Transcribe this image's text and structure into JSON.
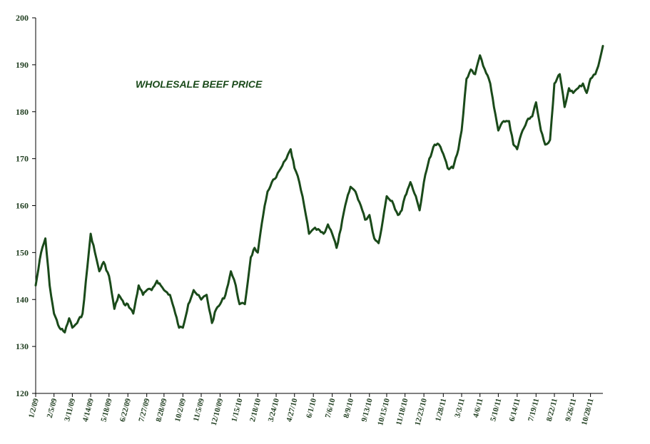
{
  "chart_data": {
    "type": "line",
    "title": "WHOLESALE BEEF PRICE",
    "xlabel": "",
    "ylabel": "",
    "ylim": [
      120,
      200
    ],
    "yticks": [
      120,
      130,
      140,
      150,
      160,
      170,
      180,
      190,
      200
    ],
    "xticks": [
      "1/2/09",
      "2/5/09",
      "3/11/09",
      "4/14/09",
      "5/18/09",
      "6/22/09",
      "7/27/09",
      "8/28/09",
      "10/2/09",
      "11/5/09",
      "12/10/09",
      "1/15/10",
      "2/18/10",
      "3/24/10",
      "4/27/10",
      "6/1/10",
      "7/6/10",
      "8/9/10",
      "9/13/10",
      "10/15/10",
      "11/18/10",
      "12/23/10",
      "1/28/11",
      "3/3/11",
      "4/6/11",
      "5/10/11",
      "6/14/11",
      "7/19/11",
      "8/22/11",
      "9/26/11",
      "10/28/11"
    ],
    "grid": false,
    "legend": "none",
    "series": [
      {
        "color": "#1a4a1a",
        "points": [
          [
            "1/2/09",
            143
          ],
          [
            "1/12/09",
            150
          ],
          [
            "1/20/09",
            153
          ],
          [
            "1/28/09",
            143
          ],
          [
            "2/5/09",
            137
          ],
          [
            "2/15/09",
            134
          ],
          [
            "2/25/09",
            133
          ],
          [
            "3/5/09",
            136
          ],
          [
            "3/11/09",
            134
          ],
          [
            "3/20/09",
            135
          ],
          [
            "3/30/09",
            137
          ],
          [
            "4/8/09",
            147
          ],
          [
            "4/14/09",
            154
          ],
          [
            "4/22/09",
            150
          ],
          [
            "4/30/09",
            146
          ],
          [
            "5/8/09",
            148
          ],
          [
            "5/18/09",
            145
          ],
          [
            "5/28/09",
            138
          ],
          [
            "6/5/09",
            141
          ],
          [
            "6/15/09",
            139
          ],
          [
            "6/22/09",
            139
          ],
          [
            "7/2/09",
            137
          ],
          [
            "7/12/09",
            143
          ],
          [
            "7/20/09",
            141
          ],
          [
            "7/27/09",
            142
          ],
          [
            "8/5/09",
            142
          ],
          [
            "8/15/09",
            144
          ],
          [
            "8/22/09",
            143
          ],
          [
            "8/28/09",
            142
          ],
          [
            "9/8/09",
            141
          ],
          [
            "9/18/09",
            137
          ],
          [
            "9/25/09",
            134
          ],
          [
            "10/2/09",
            134
          ],
          [
            "10/12/09",
            139
          ],
          [
            "10/22/09",
            142
          ],
          [
            "10/29/09",
            141
          ],
          [
            "11/5/09",
            140
          ],
          [
            "11/15/09",
            141
          ],
          [
            "11/25/09",
            135
          ],
          [
            "12/3/09",
            138
          ],
          [
            "12/10/09",
            139
          ],
          [
            "12/20/09",
            141
          ],
          [
            "12/30/09",
            146
          ],
          [
            "1/8/10",
            143
          ],
          [
            "1/15/10",
            139
          ],
          [
            "1/25/10",
            139
          ],
          [
            "2/5/10",
            149
          ],
          [
            "2/12/10",
            151
          ],
          [
            "2/18/10",
            150
          ],
          [
            "2/28/10",
            158
          ],
          [
            "3/8/10",
            163
          ],
          [
            "3/16/10",
            165
          ],
          [
            "3/24/10",
            166
          ],
          [
            "4/2/10",
            168
          ],
          [
            "4/12/10",
            170
          ],
          [
            "4/20/10",
            172
          ],
          [
            "4/27/10",
            168
          ],
          [
            "5/6/10",
            165
          ],
          [
            "5/15/10",
            160
          ],
          [
            "5/24/10",
            154
          ],
          [
            "6/1/10",
            155
          ],
          [
            "6/10/10",
            155
          ],
          [
            "6/20/10",
            154
          ],
          [
            "6/28/10",
            156
          ],
          [
            "7/6/10",
            154
          ],
          [
            "7/14/10",
            151
          ],
          [
            "7/22/10",
            155
          ],
          [
            "7/30/10",
            160
          ],
          [
            "8/9/10",
            164
          ],
          [
            "8/18/10",
            163
          ],
          [
            "8/28/10",
            160
          ],
          [
            "9/5/10",
            157
          ],
          [
            "9/13/10",
            158
          ],
          [
            "9/22/10",
            153
          ],
          [
            "9/30/10",
            152
          ],
          [
            "10/8/10",
            157
          ],
          [
            "10/15/10",
            162
          ],
          [
            "10/25/10",
            161
          ],
          [
            "11/5/10",
            158
          ],
          [
            "11/12/10",
            159
          ],
          [
            "11/18/10",
            162
          ],
          [
            "11/28/10",
            165
          ],
          [
            "12/8/10",
            162
          ],
          [
            "12/15/10",
            159
          ],
          [
            "12/23/10",
            165
          ],
          [
            "1/2/11",
            170
          ],
          [
            "1/12/11",
            173
          ],
          [
            "1/20/11",
            173
          ],
          [
            "1/28/11",
            171
          ],
          [
            "2/5/11",
            168
          ],
          [
            "2/15/11",
            168
          ],
          [
            "2/25/11",
            172
          ],
          [
            "3/3/11",
            176
          ],
          [
            "3/12/11",
            187
          ],
          [
            "3/20/11",
            189
          ],
          [
            "3/28/11",
            188
          ],
          [
            "4/6/11",
            192
          ],
          [
            "4/15/11",
            189
          ],
          [
            "4/25/11",
            186
          ],
          [
            "5/2/11",
            181
          ],
          [
            "5/10/11",
            176
          ],
          [
            "5/20/11",
            178
          ],
          [
            "5/30/11",
            178
          ],
          [
            "6/7/11",
            173
          ],
          [
            "6/14/11",
            172
          ],
          [
            "6/24/11",
            176
          ],
          [
            "7/2/11",
            178
          ],
          [
            "7/12/11",
            179
          ],
          [
            "7/19/11",
            182
          ],
          [
            "7/28/11",
            176
          ],
          [
            "8/5/11",
            173
          ],
          [
            "8/14/11",
            174
          ],
          [
            "8/22/11",
            186
          ],
          [
            "9/1/11",
            188
          ],
          [
            "9/10/11",
            181
          ],
          [
            "9/18/11",
            185
          ],
          [
            "9/26/11",
            184
          ],
          [
            "10/5/11",
            185
          ],
          [
            "10/14/11",
            186
          ],
          [
            "10/21/11",
            184
          ],
          [
            "10/28/11",
            187
          ],
          [
            "11/6/11",
            188
          ],
          [
            "11/14/11",
            191
          ],
          [
            "11/20/11",
            194
          ]
        ]
      }
    ]
  }
}
